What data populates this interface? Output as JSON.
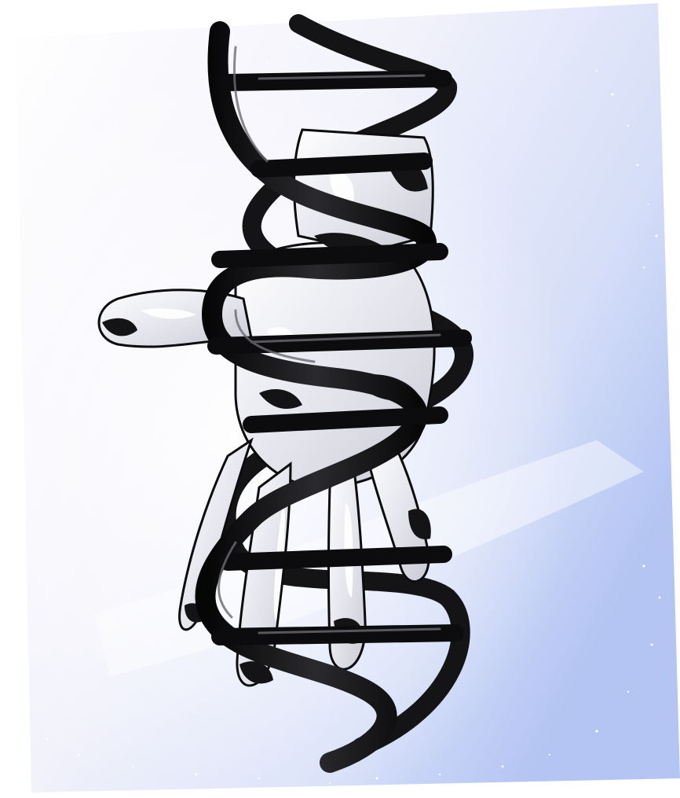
{
  "image": {
    "subject": "",
    "colors": {
      "background_light": "#f4f3fb",
      "background_blue": "#b9c8f3",
      "helix": "#0e0e10",
      "hand": "#e9e9ee",
      "hand_shadow": "#151517",
      "sparkle": "#ffffff"
    }
  }
}
